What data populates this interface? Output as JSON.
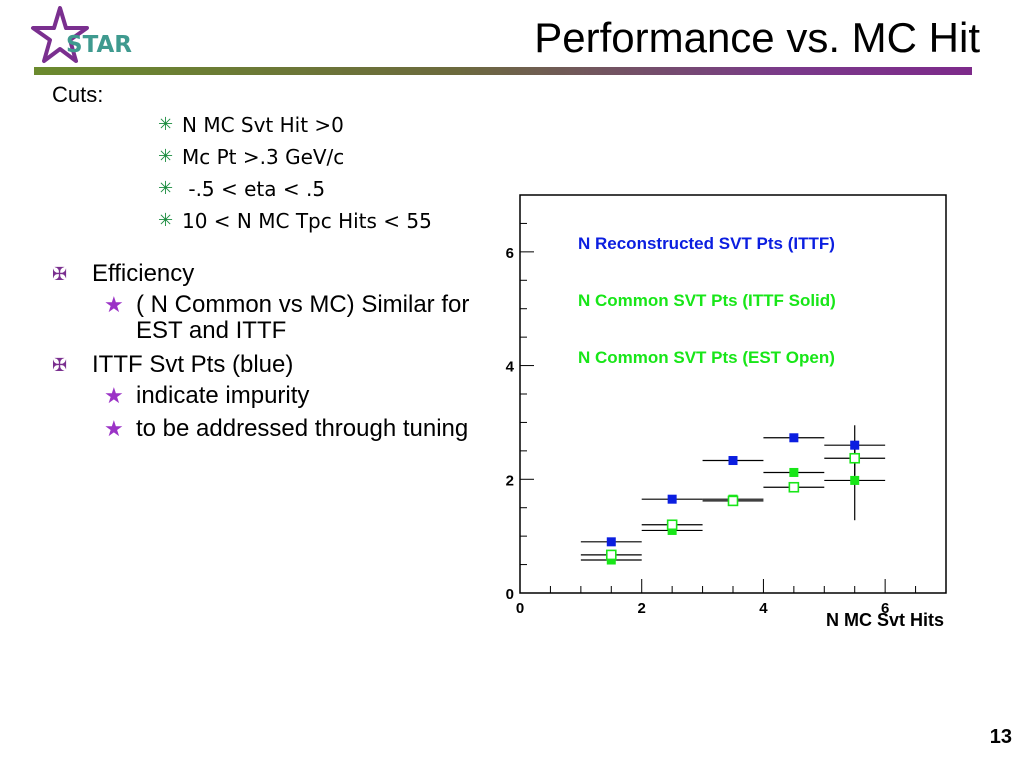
{
  "slide": {
    "title": "Performance vs. MC Hit",
    "logo_text": "STAR",
    "page_number": "13",
    "cuts_label": "Cuts:",
    "cuts": [
      "N MC Svt Hit >0",
      "Mc Pt >.3 GeV/c",
      " -.5 < eta < .5",
      "10 < N MC Tpc Hits < 55"
    ],
    "bullets": [
      {
        "label": "Efficiency",
        "subs": [
          "( N Common vs MC) Similar for EST and ITTF"
        ]
      },
      {
        "label": "ITTF Svt Pts (blue)",
        "subs": [
          "indicate impurity",
          "to be addressed through tuning"
        ]
      }
    ]
  },
  "colors": {
    "accent_purple": "#7a2f8f",
    "blue": "#0b1ee0",
    "green": "#18e618",
    "cut_bullet": "#1a8c3e"
  },
  "chart_data": {
    "type": "scatter",
    "xlabel": "N MC Svt Hits",
    "xlim": [
      0,
      7
    ],
    "ylim": [
      0,
      7
    ],
    "xticks": [
      "0",
      "2",
      "4",
      "6"
    ],
    "yticks": [
      "0",
      "2",
      "4",
      "6"
    ],
    "legend": [
      {
        "text": "N Reconstructed SVT Pts (ITTF)",
        "color": "#0b1ee0"
      },
      {
        "text": "N Common SVT Pts (ITTF Solid)",
        "color": "#18e618"
      },
      {
        "text": "N Common SVT Pts (EST Open)",
        "color": "#18e618"
      }
    ],
    "series": [
      {
        "marker": "filled",
        "color": "#0b1ee0",
        "x": [
          1.5,
          2.5,
          3.5,
          4.5,
          5.5
        ],
        "y": [
          0.9,
          1.65,
          2.33,
          2.73,
          2.6
        ],
        "xerr": 0.5,
        "yerr": [
          0.04,
          0.04,
          0.04,
          0.06,
          0.35
        ]
      },
      {
        "marker": "filled",
        "color": "#18e618",
        "x": [
          1.5,
          2.5,
          3.5,
          4.5,
          5.5
        ],
        "y": [
          0.58,
          1.1,
          1.65,
          2.12,
          1.98
        ],
        "xerr": 0.5,
        "yerr": [
          0.04,
          0.04,
          0.04,
          0.06,
          0.7
        ]
      },
      {
        "marker": "open",
        "color": "#18e618",
        "x": [
          1.5,
          2.5,
          3.5,
          4.5,
          5.5
        ],
        "y": [
          0.67,
          1.2,
          1.62,
          1.86,
          2.37
        ],
        "xerr": 0.5,
        "yerr": [
          0.04,
          0.04,
          0.04,
          0.06,
          0.3
        ]
      }
    ]
  }
}
